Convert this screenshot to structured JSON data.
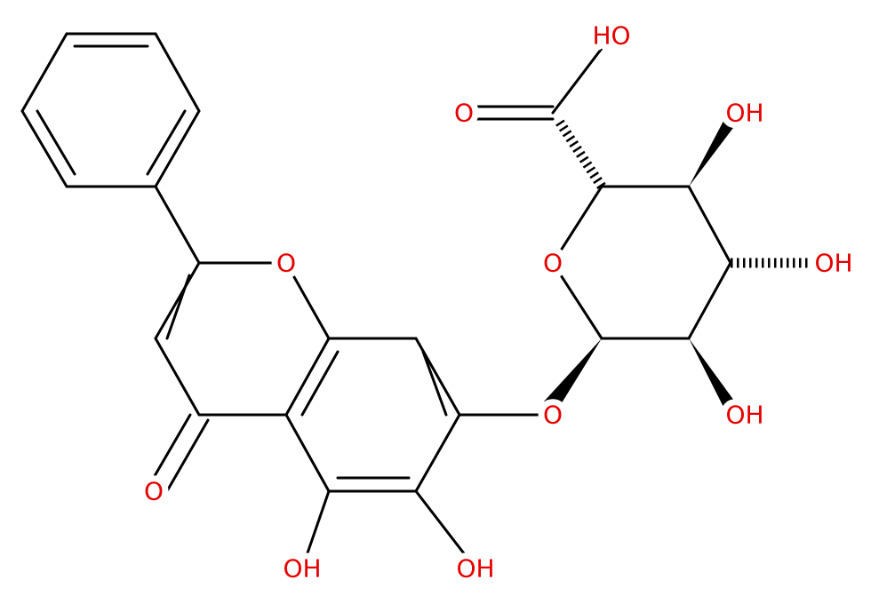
{
  "atoms": [
    {
      "label": "HO"
    },
    {
      "label": "O"
    },
    {
      "label": "OH"
    },
    {
      "label": "O"
    },
    {
      "label": "OH"
    },
    {
      "label": "OH"
    },
    {
      "label": "O"
    },
    {
      "label": "O"
    },
    {
      "label": "OH"
    },
    {
      "label": "OH"
    },
    {
      "label": "O"
    }
  ]
}
